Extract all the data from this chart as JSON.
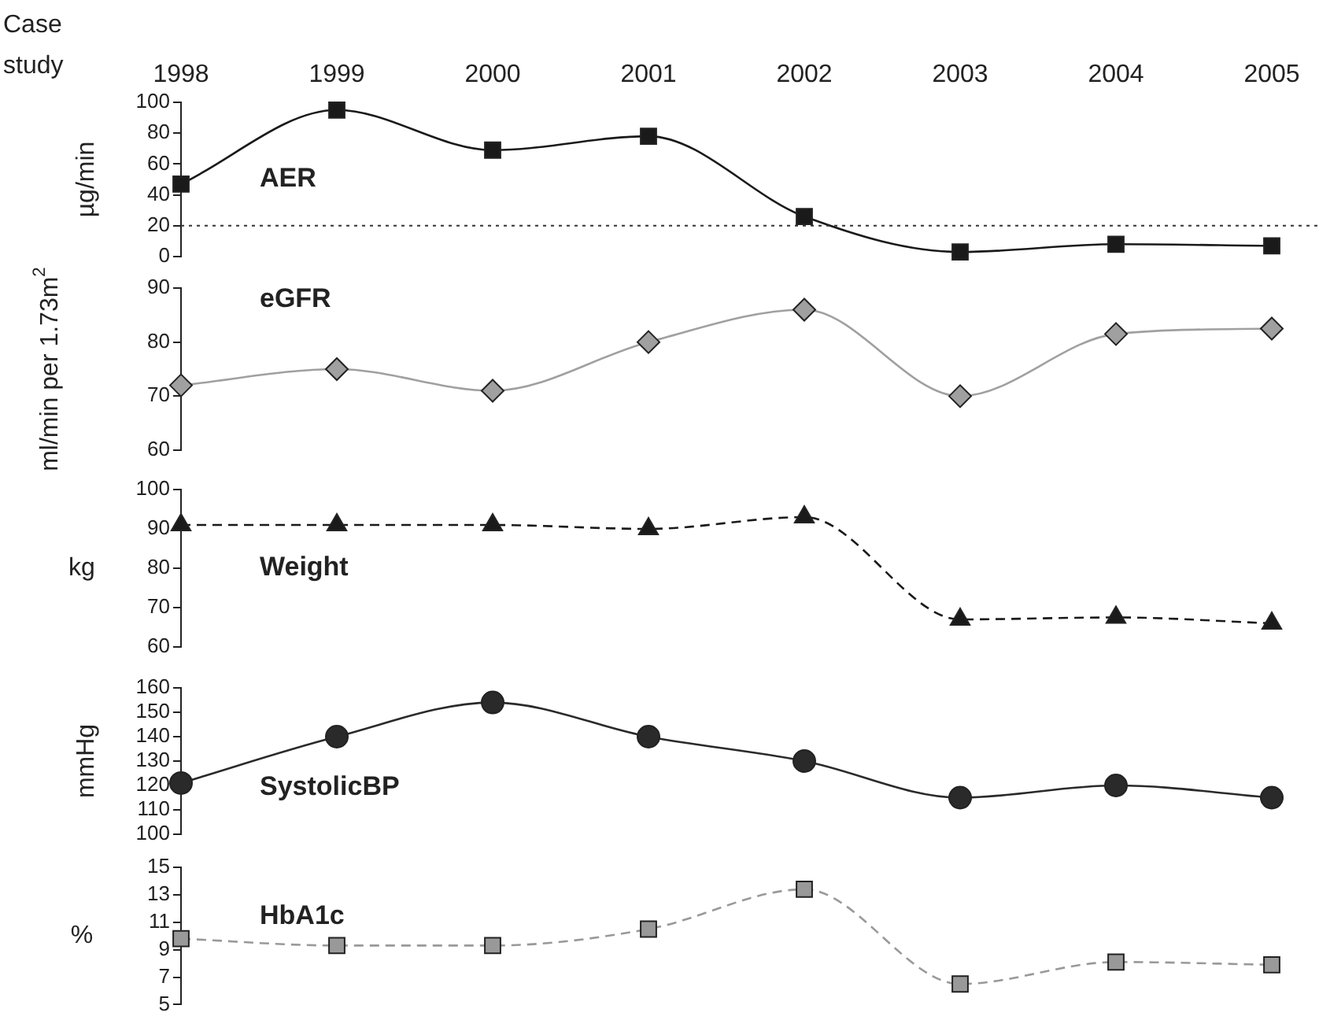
{
  "chart_data": [
    {
      "type": "line",
      "xlabel": "Case study",
      "ylabel": "µg/min",
      "categories": [
        "1998",
        "1999",
        "2000",
        "2001",
        "2002",
        "2003",
        "2004",
        "2005"
      ],
      "series": [
        {
          "name": "AER",
          "color": "#1a1a1a",
          "values": [
            47,
            95,
            69,
            78,
            26,
            3,
            8,
            7
          ]
        }
      ],
      "ylim": [
        0,
        100
      ],
      "yticks": [
        0,
        20,
        40,
        60,
        80,
        100
      ],
      "grid": false,
      "legend": false,
      "marker": "square",
      "line_style": "solid",
      "ref_lines": [
        {
          "axis": "y",
          "value": 20,
          "color": "#333333",
          "line_style": "dotted"
        }
      ]
    },
    {
      "type": "line",
      "ylabel": "ml/min per 1.73m$^{2}$",
      "categories": [
        "1998",
        "1999",
        "2000",
        "2001",
        "2002",
        "2003",
        "2004",
        "2005"
      ],
      "series": [
        {
          "name": "eGFR",
          "color": "#a0a0a0",
          "values": [
            72,
            75,
            71,
            80,
            86,
            70,
            81.5,
            82.5
          ]
        }
      ],
      "ylim": [
        60,
        90
      ],
      "yticks": [
        60,
        70,
        80,
        90
      ],
      "grid": false,
      "legend": false,
      "marker": "diamond",
      "line_style": "solid",
      "tick_labels": "y"
    },
    {
      "type": "line",
      "ylabel": "kg",
      "categories": [
        "1998",
        "1999",
        "2000",
        "2001",
        "2002",
        "2003",
        "2004",
        "2005"
      ],
      "series": [
        {
          "name": "Weight",
          "color": "#1a1a1a",
          "values": [
            91,
            91,
            91,
            90,
            93,
            67,
            67.5,
            66
          ]
        }
      ],
      "ylim": [
        60,
        100
      ],
      "yticks": [
        60,
        70,
        80,
        90,
        100
      ],
      "grid": false,
      "legend": false,
      "marker": "triangle",
      "line_style": "dashed",
      "tick_labels": "y"
    },
    {
      "type": "line",
      "ylabel": "mmHg",
      "categories": [
        "1998",
        "1999",
        "2000",
        "2001",
        "2002",
        "2003",
        "2004",
        "2005"
      ],
      "series": [
        {
          "name": "SystolicBP",
          "color": "#2a2a2a",
          "values": [
            121,
            140,
            154,
            140,
            130,
            115,
            120,
            115
          ]
        }
      ],
      "ylim": [
        100,
        160
      ],
      "yticks": [
        100,
        110,
        120,
        130,
        140,
        150,
        160
      ],
      "grid": false,
      "legend": false,
      "marker": "circle",
      "line_style": "solid",
      "tick_labels": "y"
    },
    {
      "type": "line",
      "ylabel": "%",
      "categories": [
        "1998",
        "1999",
        "2000",
        "2001",
        "2002",
        "2003",
        "2004",
        "2005"
      ],
      "series": [
        {
          "name": "HbA1c",
          "color": "#999999",
          "values": [
            9.8,
            9.3,
            9.3,
            10.5,
            13.4,
            6.5,
            8.1,
            7.9
          ]
        }
      ],
      "ylim": [
        5,
        15
      ],
      "yticks": [
        5,
        7,
        9,
        11,
        13,
        15
      ],
      "grid": false,
      "legend": false,
      "marker": "square",
      "line_style": "dashed",
      "tick_labels": "y"
    }
  ]
}
